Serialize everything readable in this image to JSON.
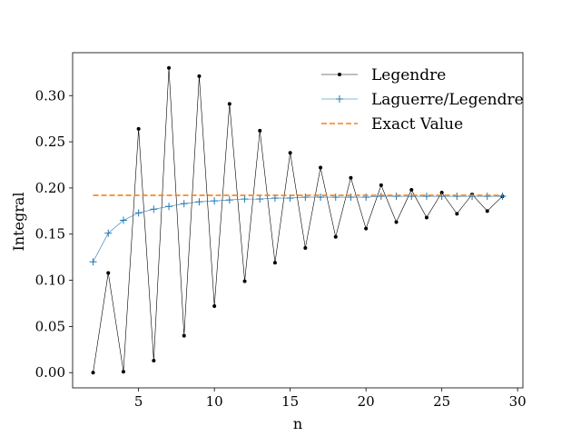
{
  "chart_data": {
    "type": "line",
    "xlabel": "n",
    "ylabel": "Integral",
    "xlim": [
      0.65,
      30.35
    ],
    "ylim": [
      -0.0165,
      0.3465
    ],
    "xticks": [
      5,
      10,
      15,
      20,
      25,
      30
    ],
    "yticks": [
      0.0,
      0.05,
      0.1,
      0.15,
      0.2,
      0.25,
      0.3
    ],
    "ytick_format_decimals": 2,
    "grid": false,
    "legend_position": "top-right",
    "series": [
      {
        "name": "Legendre",
        "color": "#000000",
        "marker": "dot",
        "linestyle": "solid",
        "x": [
          2,
          3,
          4,
          5,
          6,
          7,
          8,
          9,
          10,
          11,
          12,
          13,
          14,
          15,
          16,
          17,
          18,
          19,
          20,
          21,
          22,
          23,
          24,
          25,
          26,
          27,
          28,
          29
        ],
        "y": [
          0.0,
          0.108,
          0.001,
          0.264,
          0.013,
          0.33,
          0.04,
          0.321,
          0.072,
          0.291,
          0.099,
          0.262,
          0.119,
          0.238,
          0.135,
          0.222,
          0.147,
          0.211,
          0.156,
          0.203,
          0.163,
          0.198,
          0.168,
          0.195,
          0.172,
          0.193,
          0.175,
          0.191
        ]
      },
      {
        "name": "Laguerre/Legendre",
        "color": "#1f77b4",
        "marker": "plus",
        "linestyle": "solid",
        "x": [
          2,
          3,
          4,
          5,
          6,
          7,
          8,
          9,
          10,
          11,
          12,
          13,
          14,
          15,
          16,
          17,
          18,
          19,
          20,
          21,
          22,
          23,
          24,
          25,
          26,
          27,
          28,
          29
        ],
        "y": [
          0.12,
          0.151,
          0.165,
          0.173,
          0.177,
          0.18,
          0.183,
          0.185,
          0.186,
          0.187,
          0.188,
          0.188,
          0.189,
          0.189,
          0.19,
          0.19,
          0.19,
          0.19,
          0.19,
          0.191,
          0.191,
          0.191,
          0.191,
          0.191,
          0.191,
          0.191,
          0.191,
          0.191
        ]
      },
      {
        "name": "Exact Value",
        "color": "#ff7f0e",
        "marker": "none",
        "linestyle": "dashed",
        "x": [
          2,
          29
        ],
        "y": [
          0.192,
          0.192
        ]
      }
    ]
  }
}
